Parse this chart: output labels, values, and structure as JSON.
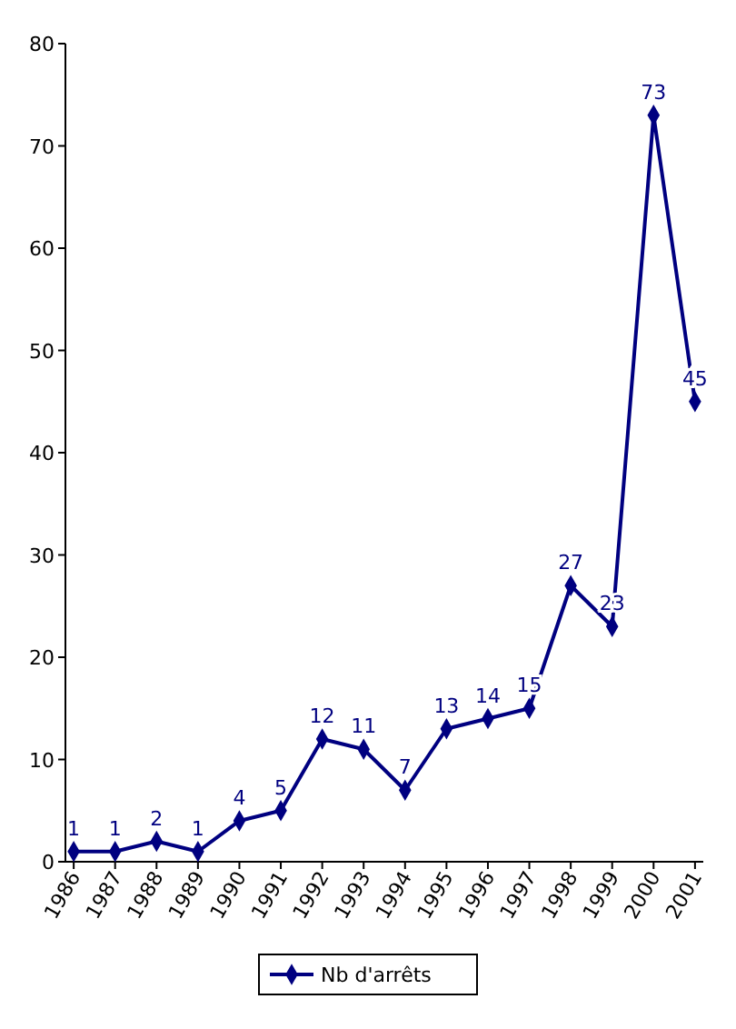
{
  "chart_data": {
    "type": "line",
    "categories": [
      "1986",
      "1987",
      "1988",
      "1989",
      "1990",
      "1991",
      "1992",
      "1993",
      "1994",
      "1995",
      "1996",
      "1997",
      "1998",
      "1999",
      "2000",
      "2001"
    ],
    "series": [
      {
        "name": "Nb d'arrêts",
        "color": "#000080",
        "values": [
          1,
          1,
          2,
          1,
          4,
          5,
          12,
          11,
          7,
          13,
          14,
          15,
          27,
          23,
          73,
          45
        ]
      }
    ],
    "ylim": [
      0,
      80
    ],
    "yticks": [
      0,
      10,
      20,
      30,
      40,
      50,
      60,
      70,
      80
    ],
    "data_labels": true,
    "marker": "diamond",
    "line_style": "solid",
    "legend": "bottom",
    "grid": false
  }
}
